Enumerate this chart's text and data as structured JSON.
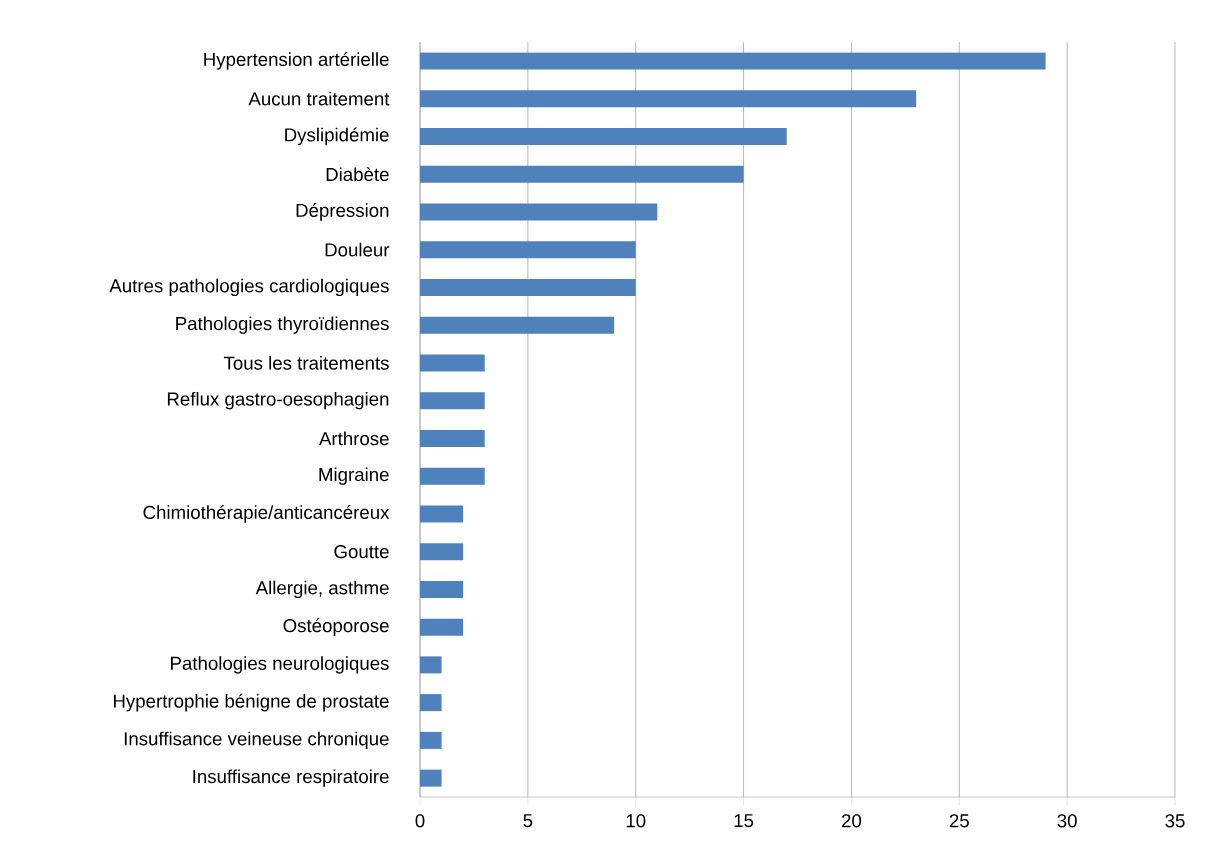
{
  "chart_data": {
    "type": "bar",
    "orientation": "horizontal",
    "categories": [
      "Hypertension artérielle",
      "Aucun traitement",
      "Dyslipidémie",
      "Diabète",
      "Dépression",
      "Douleur",
      "Autres pathologies cardiologiques",
      "Pathologies thyroïdiennes",
      "Tous les traitements",
      "Reflux gastro-oesophagien",
      "Arthrose",
      "Migraine",
      "Chimiothérapie/anticancéreux",
      "Goutte",
      "Allergie, asthme",
      "Ostéoporose",
      "Pathologies neurologiques",
      "Hypertrophie bénigne de prostate",
      "Insuffisance veineuse chronique",
      "Insuffisance respiratoire"
    ],
    "values": [
      29,
      23,
      17,
      15,
      11,
      10,
      10,
      9,
      3,
      3,
      3,
      3,
      2,
      2,
      2,
      2,
      1,
      1,
      1,
      1
    ],
    "color": "#4f81bd",
    "xlim": [
      0,
      35
    ],
    "xticks": [
      0,
      5,
      10,
      15,
      20,
      25,
      30,
      35
    ],
    "grid": "x"
  }
}
